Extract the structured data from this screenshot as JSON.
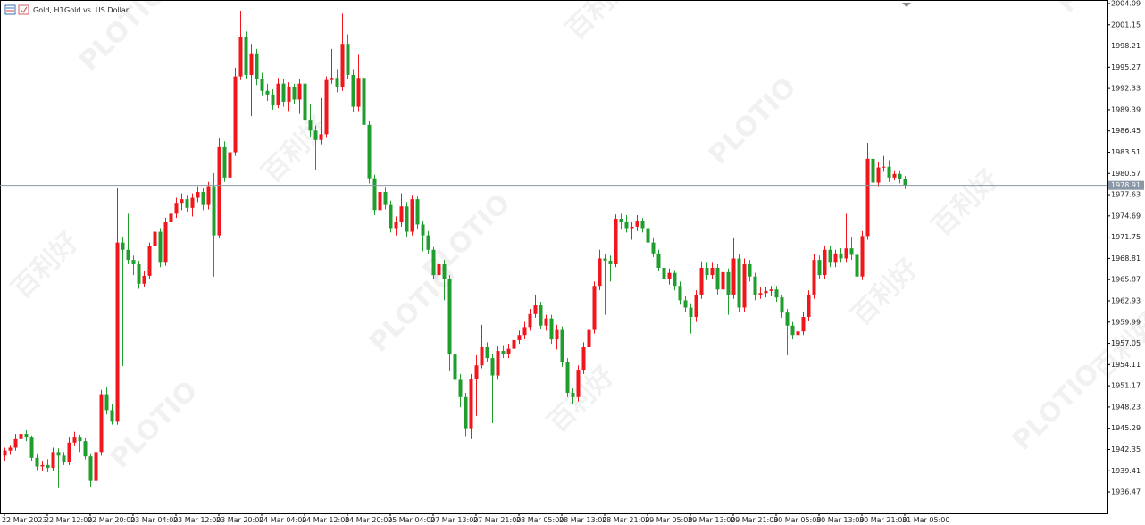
{
  "chart_data": {
    "type": "candlestick",
    "title": "Gold, H1:",
    "subtitle": "Gold vs. US Dollar",
    "watermark": [
      "PLOTIO",
      "百利好"
    ],
    "up_color": "#f0161c",
    "down_color": "#1f9e2e",
    "last_price": 1978.91,
    "last_price_color": "#8a97a6",
    "xlim": [
      -0.83,
      205.83
    ],
    "ylim": [
      1933.51,
      2004.58
    ],
    "yticks": [
      2004.09,
      2001.15,
      1998.21,
      1995.27,
      1992.33,
      1989.39,
      1986.45,
      1983.51,
      1980.57,
      1977.63,
      1974.69,
      1971.75,
      1968.81,
      1965.87,
      1962.93,
      1959.99,
      1957.05,
      1954.11,
      1951.17,
      1948.23,
      1945.29,
      1942.35,
      1939.41,
      1936.47
    ],
    "xticks": [
      {
        "value": 0,
        "label": "22 Mar 2023"
      },
      {
        "value": 8,
        "label": "22 Mar 12:00"
      },
      {
        "value": 16,
        "label": "22 Mar 20:00"
      },
      {
        "value": 24,
        "label": "23 Mar 04:00"
      },
      {
        "value": 32,
        "label": "23 Mar 12:00"
      },
      {
        "value": 40,
        "label": "23 Mar 20:00"
      },
      {
        "value": 48,
        "label": "24 Mar 04:00"
      },
      {
        "value": 56,
        "label": "24 Mar 12:00"
      },
      {
        "value": 64,
        "label": "24 Mar 20:00"
      },
      {
        "value": 72,
        "label": "25 Mar 04:00"
      },
      {
        "value": 80,
        "label": "27 Mar 13:00"
      },
      {
        "value": 88,
        "label": "27 Mar 21:00"
      },
      {
        "value": 96,
        "label": "28 Mar 05:00"
      },
      {
        "value": 104,
        "label": "28 Mar 13:00"
      },
      {
        "value": 112,
        "label": "28 Mar 21:00"
      },
      {
        "value": 120,
        "label": "29 Mar 05:00"
      },
      {
        "value": 128,
        "label": "29 Mar 13:00"
      },
      {
        "value": 136,
        "label": "29 Mar 21:00"
      },
      {
        "value": 144,
        "label": "30 Mar 05:00"
      },
      {
        "value": 152,
        "label": "30 Mar 13:00"
      },
      {
        "value": 160,
        "label": "30 Mar 21:00"
      },
      {
        "value": 168,
        "label": "31 Mar 05:00"
      }
    ],
    "ohlc": [
      [
        1941.5,
        1942.6,
        1940.8,
        1942.2
      ],
      [
        1942.2,
        1943.0,
        1941.6,
        1942.6
      ],
      [
        1942.6,
        1944.5,
        1942.2,
        1943.8
      ],
      [
        1943.8,
        1945.8,
        1943.2,
        1944.5
      ],
      [
        1944.5,
        1945.0,
        1943.5,
        1944.0
      ],
      [
        1944.0,
        1944.3,
        1940.8,
        1941.2
      ],
      [
        1941.2,
        1941.8,
        1939.5,
        1940.0
      ],
      [
        1940.0,
        1940.8,
        1939.4,
        1940.2
      ],
      [
        1940.2,
        1941.0,
        1939.2,
        1939.8
      ],
      [
        1939.8,
        1942.6,
        1939.4,
        1942.0
      ],
      [
        1942.0,
        1942.5,
        1937.0,
        1941.5
      ],
      [
        1941.5,
        1942.0,
        1940.2,
        1940.6
      ],
      [
        1940.6,
        1944.0,
        1940.2,
        1943.3
      ],
      [
        1943.3,
        1944.8,
        1942.8,
        1944.0
      ],
      [
        1944.0,
        1944.4,
        1942.0,
        1943.5
      ],
      [
        1943.5,
        1943.9,
        1941.0,
        1941.4
      ],
      [
        1941.4,
        1941.8,
        1937.2,
        1938.0
      ],
      [
        1938.0,
        1942.6,
        1937.6,
        1942.0
      ],
      [
        1942.0,
        1950.6,
        1941.5,
        1950.0
      ],
      [
        1950.0,
        1951.0,
        1947.2,
        1947.8
      ],
      [
        1947.8,
        1948.6,
        1945.8,
        1946.2
      ],
      [
        1946.2,
        1978.5,
        1945.8,
        1971.0
      ],
      [
        1971.0,
        1971.8,
        1953.9,
        1970.0
      ],
      [
        1970.0,
        1975.0,
        1968.0,
        1968.6
      ],
      [
        1968.6,
        1969.2,
        1966.5,
        1968.0
      ],
      [
        1968.0,
        1968.5,
        1964.6,
        1965.3
      ],
      [
        1965.3,
        1967.0,
        1964.8,
        1966.4
      ],
      [
        1966.4,
        1971.0,
        1966.0,
        1970.5
      ],
      [
        1970.5,
        1973.8,
        1970.0,
        1972.5
      ],
      [
        1972.5,
        1973.0,
        1967.6,
        1968.2
      ],
      [
        1968.2,
        1974.4,
        1967.8,
        1973.8
      ],
      [
        1973.8,
        1975.8,
        1973.2,
        1975.0
      ],
      [
        1975.0,
        1977.2,
        1974.4,
        1976.5
      ],
      [
        1976.5,
        1977.8,
        1975.5,
        1977.0
      ],
      [
        1977.0,
        1977.6,
        1975.2,
        1975.8
      ],
      [
        1975.8,
        1977.8,
        1974.6,
        1977.2
      ],
      [
        1977.2,
        1978.8,
        1976.6,
        1978.0
      ],
      [
        1978.0,
        1978.5,
        1975.5,
        1976.2
      ],
      [
        1976.2,
        1979.4,
        1975.6,
        1978.8
      ],
      [
        1978.8,
        1980.6,
        1966.3,
        1972.0
      ],
      [
        1972.0,
        1985.4,
        1971.6,
        1984.2
      ],
      [
        1984.2,
        1985.0,
        1979.4,
        1980.0
      ],
      [
        1980.0,
        1984.0,
        1978.0,
        1983.5
      ],
      [
        1983.5,
        1995.2,
        1983.0,
        1994.0
      ],
      [
        1994.0,
        2003.1,
        1993.5,
        1999.5
      ],
      [
        1999.5,
        2000.2,
        1993.6,
        1994.2
      ],
      [
        1994.2,
        1998.5,
        1988.5,
        1997.2
      ],
      [
        1997.2,
        1997.8,
        1992.8,
        1993.6
      ],
      [
        1993.6,
        1994.5,
        1991.4,
        1992.0
      ],
      [
        1992.0,
        1993.0,
        1990.6,
        1991.5
      ],
      [
        1991.5,
        1992.2,
        1989.4,
        1990.0
      ],
      [
        1990.0,
        1993.8,
        1989.6,
        1993.0
      ],
      [
        1993.0,
        1993.6,
        1989.8,
        1990.5
      ],
      [
        1990.5,
        1993.2,
        1989.2,
        1992.5
      ],
      [
        1992.5,
        1993.0,
        1990.2,
        1990.8
      ],
      [
        1990.8,
        1993.6,
        1988.8,
        1993.0
      ],
      [
        1993.0,
        1993.5,
        1987.4,
        1988.0
      ],
      [
        1988.0,
        1990.2,
        1985.6,
        1986.5
      ],
      [
        1986.5,
        1987.2,
        1981.1,
        1985.2
      ],
      [
        1985.2,
        1991.0,
        1984.6,
        1986.0
      ],
      [
        1986.0,
        1994.0,
        1985.5,
        1993.5
      ],
      [
        1993.5,
        1997.8,
        1993.0,
        1993.8
      ],
      [
        1993.8,
        1995.0,
        1991.8,
        1992.5
      ],
      [
        1992.5,
        2002.7,
        1992.0,
        1998.5
      ],
      [
        1998.5,
        1999.8,
        1993.6,
        1994.2
      ],
      [
        1994.2,
        1995.0,
        1989.0,
        1989.8
      ],
      [
        1989.8,
        1997.0,
        1989.2,
        1993.8
      ],
      [
        1993.8,
        1994.4,
        1986.6,
        1987.3
      ],
      [
        1987.3,
        1987.8,
        1979.2,
        1979.9
      ],
      [
        1979.9,
        1980.4,
        1974.8,
        1975.5
      ],
      [
        1975.5,
        1978.6,
        1975.0,
        1978.0
      ],
      [
        1978.0,
        1978.6,
        1975.6,
        1976.2
      ],
      [
        1976.2,
        1976.8,
        1972.4,
        1973.0
      ],
      [
        1973.0,
        1974.6,
        1972.0,
        1973.8
      ],
      [
        1973.8,
        1977.8,
        1973.2,
        1976.0
      ],
      [
        1976.0,
        1976.6,
        1971.8,
        1972.5
      ],
      [
        1972.5,
        1977.6,
        1972.0,
        1977.0
      ],
      [
        1977.0,
        1977.4,
        1972.8,
        1973.5
      ],
      [
        1973.5,
        1974.0,
        1969.8,
        1972.0
      ],
      [
        1972.0,
        1972.6,
        1969.4,
        1970.0
      ],
      [
        1970.0,
        1970.4,
        1966.0,
        1966.5
      ],
      [
        1966.5,
        1969.8,
        1964.8,
        1968.0
      ],
      [
        1968.0,
        1968.6,
        1963.0,
        1966.0
      ],
      [
        1966.0,
        1966.5,
        1953.2,
        1955.5
      ],
      [
        1955.5,
        1956.0,
        1950.8,
        1952.0
      ],
      [
        1952.0,
        1952.8,
        1948.2,
        1949.6
      ],
      [
        1949.6,
        1950.2,
        1944.2,
        1945.3
      ],
      [
        1945.3,
        1952.8,
        1943.8,
        1952.1
      ],
      [
        1952.1,
        1955.4,
        1947.0,
        1954.0
      ],
      [
        1954.0,
        1959.6,
        1953.6,
        1956.5
      ],
      [
        1956.5,
        1957.2,
        1954.4,
        1955.0
      ],
      [
        1955.0,
        1955.6,
        1946.0,
        1952.6
      ],
      [
        1952.6,
        1956.6,
        1952.0,
        1956.0
      ],
      [
        1956.0,
        1956.8,
        1955.0,
        1955.6
      ],
      [
        1955.6,
        1957.0,
        1955.0,
        1956.3
      ],
      [
        1956.3,
        1958.0,
        1955.8,
        1957.5
      ],
      [
        1957.5,
        1958.8,
        1957.0,
        1958.2
      ],
      [
        1958.2,
        1960.0,
        1957.6,
        1959.3
      ],
      [
        1959.3,
        1961.8,
        1958.8,
        1961.1
      ],
      [
        1961.1,
        1963.8,
        1960.6,
        1962.3
      ],
      [
        1962.3,
        1962.8,
        1959.0,
        1959.5
      ],
      [
        1959.5,
        1961.0,
        1958.8,
        1960.5
      ],
      [
        1960.5,
        1961.0,
        1957.0,
        1957.6
      ],
      [
        1957.6,
        1959.6,
        1956.2,
        1958.9
      ],
      [
        1958.9,
        1959.4,
        1953.8,
        1954.5
      ],
      [
        1954.5,
        1955.0,
        1949.6,
        1950.2
      ],
      [
        1950.2,
        1950.8,
        1948.6,
        1949.6
      ],
      [
        1949.6,
        1954.0,
        1949.0,
        1953.4
      ],
      [
        1953.4,
        1957.2,
        1952.8,
        1956.5
      ],
      [
        1956.5,
        1959.4,
        1956.0,
        1958.9
      ],
      [
        1958.9,
        1965.6,
        1958.4,
        1965.0
      ],
      [
        1965.0,
        1970.0,
        1964.4,
        1968.8
      ],
      [
        1968.8,
        1969.4,
        1961.0,
        1968.5
      ],
      [
        1968.5,
        1969.2,
        1965.6,
        1968.0
      ],
      [
        1968.0,
        1974.9,
        1967.6,
        1974.3
      ],
      [
        1974.3,
        1975.0,
        1972.8,
        1973.8
      ],
      [
        1973.8,
        1974.8,
        1972.4,
        1973.0
      ],
      [
        1973.0,
        1973.8,
        1971.4,
        1973.2
      ],
      [
        1973.2,
        1974.8,
        1972.6,
        1974.0
      ],
      [
        1974.0,
        1974.4,
        1972.4,
        1973.0
      ],
      [
        1973.0,
        1973.5,
        1970.4,
        1971.0
      ],
      [
        1971.0,
        1971.6,
        1969.0,
        1969.5
      ],
      [
        1969.5,
        1970.0,
        1967.0,
        1967.5
      ],
      [
        1967.5,
        1968.2,
        1965.4,
        1966.0
      ],
      [
        1966.0,
        1967.4,
        1965.2,
        1966.8
      ],
      [
        1966.8,
        1967.2,
        1964.4,
        1965.0
      ],
      [
        1965.0,
        1965.6,
        1962.4,
        1963.0
      ],
      [
        1963.0,
        1963.6,
        1961.4,
        1962.0
      ],
      [
        1962.0,
        1962.6,
        1958.4,
        1960.7
      ],
      [
        1960.7,
        1964.4,
        1960.0,
        1963.8
      ],
      [
        1963.8,
        1968.4,
        1963.2,
        1967.5
      ],
      [
        1967.5,
        1968.2,
        1965.8,
        1966.5
      ],
      [
        1966.5,
        1968.2,
        1966.0,
        1967.5
      ],
      [
        1967.5,
        1968.0,
        1963.8,
        1964.5
      ],
      [
        1964.5,
        1967.6,
        1964.0,
        1966.9
      ],
      [
        1966.9,
        1967.4,
        1961.0,
        1963.8
      ],
      [
        1963.8,
        1971.6,
        1963.2,
        1968.8
      ],
      [
        1968.8,
        1969.4,
        1961.4,
        1962.0
      ],
      [
        1962.0,
        1968.8,
        1961.4,
        1968.0
      ],
      [
        1968.0,
        1968.6,
        1965.6,
        1966.3
      ],
      [
        1966.3,
        1966.8,
        1963.0,
        1963.8
      ],
      [
        1963.8,
        1964.8,
        1963.2,
        1964.0
      ],
      [
        1964.0,
        1964.8,
        1963.4,
        1964.3
      ],
      [
        1964.3,
        1965.0,
        1963.6,
        1964.5
      ],
      [
        1964.5,
        1965.0,
        1962.8,
        1963.4
      ],
      [
        1963.4,
        1963.8,
        1960.6,
        1961.3
      ],
      [
        1961.3,
        1961.8,
        1955.4,
        1959.5
      ],
      [
        1959.5,
        1960.0,
        1957.6,
        1958.2
      ],
      [
        1958.2,
        1959.4,
        1957.6,
        1958.7
      ],
      [
        1958.7,
        1961.4,
        1958.2,
        1960.7
      ],
      [
        1960.7,
        1964.4,
        1960.2,
        1963.8
      ],
      [
        1963.8,
        1969.4,
        1963.2,
        1968.6
      ],
      [
        1968.6,
        1969.2,
        1966.0,
        1966.5
      ],
      [
        1966.5,
        1970.6,
        1966.0,
        1970.0
      ],
      [
        1970.0,
        1970.6,
        1967.6,
        1968.2
      ],
      [
        1968.2,
        1970.0,
        1967.6,
        1969.5
      ],
      [
        1969.5,
        1970.2,
        1968.2,
        1968.8
      ],
      [
        1968.8,
        1975.0,
        1968.2,
        1970.2
      ],
      [
        1970.2,
        1971.8,
        1968.6,
        1969.3
      ],
      [
        1969.3,
        1969.8,
        1963.6,
        1966.3
      ],
      [
        1966.3,
        1972.6,
        1965.8,
        1971.9
      ],
      [
        1971.9,
        1984.8,
        1971.4,
        1982.6
      ],
      [
        1982.6,
        1984.0,
        1978.6,
        1979.3
      ],
      [
        1979.3,
        1982.2,
        1978.8,
        1981.4
      ],
      [
        1981.4,
        1983.0,
        1980.8,
        1981.5
      ],
      [
        1981.5,
        1982.4,
        1979.4,
        1980.0
      ],
      [
        1980.0,
        1981.0,
        1979.6,
        1980.5
      ],
      [
        1980.5,
        1981.0,
        1979.2,
        1979.8
      ],
      [
        1979.8,
        1980.2,
        1978.4,
        1978.91
      ]
    ]
  }
}
